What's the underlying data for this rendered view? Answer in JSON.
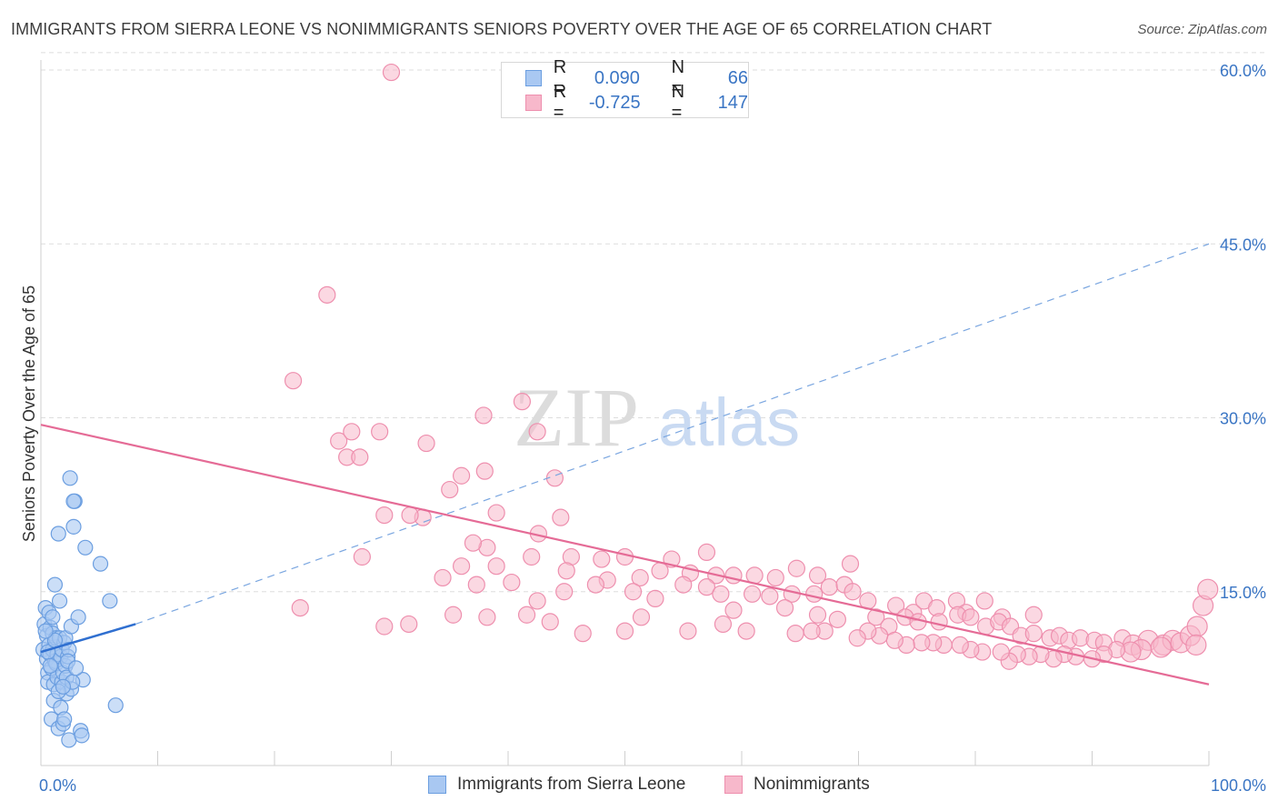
{
  "title": "IMMIGRANTS FROM SIERRA LEONE VS NONIMMIGRANTS SENIORS POVERTY OVER THE AGE OF 65 CORRELATION CHART",
  "source": "Source: ZipAtlas.com",
  "watermark": {
    "part1": "ZIP",
    "part2": "atlas"
  },
  "legend": {
    "r_label": "R =",
    "n_label": "N =",
    "rows": [
      {
        "r": "0.090",
        "n": "66"
      },
      {
        "r": "-0.725",
        "n": "147"
      }
    ]
  },
  "colors": {
    "blue_fill": "#a9c8f2",
    "blue_stroke": "#6b9ee0",
    "blue_line": "#2f6fd0",
    "pink_fill": "#f7b8cb",
    "pink_stroke": "#ee8fae",
    "pink_line": "#e56b96",
    "tick_label": "#3a75c4",
    "grid": "#dddddd"
  },
  "chart_data": {
    "type": "scatter",
    "ylabel": "Seniors Poverty Over the Age of 65",
    "x_tick_labels": {
      "min": "0.0%",
      "max": "100.0%"
    },
    "y_tick_labels": [
      "15.0%",
      "30.0%",
      "45.0%",
      "60.0%"
    ],
    "y_ticks": [
      15,
      30,
      45,
      60
    ],
    "xlim": [
      0,
      100
    ],
    "ylim": [
      0,
      60
    ],
    "grid": true,
    "series": [
      {
        "name": "Immigrants from Sierra Leone",
        "r": 0.09,
        "n": 66,
        "trend_solid": [
          [
            0.0,
            9.8
          ],
          [
            8.1,
            12.2
          ]
        ],
        "trend_dashed": [
          [
            8.1,
            12.2
          ],
          [
            100.0,
            45.0
          ]
        ],
        "points": [
          [
            0.2,
            10.0
          ],
          [
            0.3,
            12.2
          ],
          [
            0.4,
            13.6
          ],
          [
            0.5,
            11.2
          ],
          [
            0.5,
            9.2
          ],
          [
            0.6,
            8.0
          ],
          [
            0.6,
            7.2
          ],
          [
            0.7,
            13.2
          ],
          [
            0.7,
            10.4
          ],
          [
            0.8,
            11.9
          ],
          [
            0.8,
            9.6
          ],
          [
            0.9,
            8.4
          ],
          [
            0.9,
            4.0
          ],
          [
            1.0,
            11.4
          ],
          [
            1.0,
            10.0
          ],
          [
            1.1,
            7.0
          ],
          [
            1.1,
            5.6
          ],
          [
            1.2,
            9.0
          ],
          [
            1.2,
            15.6
          ],
          [
            1.3,
            11.0
          ],
          [
            1.3,
            8.8
          ],
          [
            1.4,
            7.6
          ],
          [
            1.4,
            9.6
          ],
          [
            1.5,
            20.0
          ],
          [
            1.5,
            3.2
          ],
          [
            1.6,
            11.0
          ],
          [
            1.6,
            14.2
          ],
          [
            1.7,
            9.4
          ],
          [
            1.7,
            5.0
          ],
          [
            1.8,
            7.2
          ],
          [
            1.8,
            10.0
          ],
          [
            1.9,
            8.0
          ],
          [
            1.9,
            3.6
          ],
          [
            2.0,
            10.6
          ],
          [
            2.0,
            4.0
          ],
          [
            2.1,
            11.0
          ],
          [
            2.1,
            8.6
          ],
          [
            2.2,
            7.6
          ],
          [
            2.2,
            6.2
          ],
          [
            2.3,
            9.4
          ],
          [
            2.4,
            2.2
          ],
          [
            2.4,
            10.0
          ],
          [
            2.5,
            24.8
          ],
          [
            2.6,
            12.0
          ],
          [
            2.6,
            6.6
          ],
          [
            2.8,
            20.6
          ],
          [
            2.9,
            22.8
          ],
          [
            2.8,
            22.8
          ],
          [
            3.2,
            12.8
          ],
          [
            3.4,
            3.0
          ],
          [
            3.5,
            2.6
          ],
          [
            3.6,
            7.4
          ],
          [
            3.8,
            18.8
          ],
          [
            5.1,
            17.4
          ],
          [
            5.9,
            14.2
          ],
          [
            6.4,
            5.2
          ],
          [
            1.0,
            12.8
          ],
          [
            0.6,
            9.8
          ],
          [
            1.5,
            6.4
          ],
          [
            2.7,
            7.2
          ],
          [
            1.9,
            6.8
          ],
          [
            0.8,
            8.6
          ],
          [
            1.2,
            10.8
          ],
          [
            2.3,
            9.0
          ],
          [
            0.4,
            11.6
          ],
          [
            3.0,
            8.4
          ]
        ]
      },
      {
        "name": "Nonimmigrants",
        "r": -0.725,
        "n": 147,
        "trend": [
          [
            0.0,
            29.4
          ],
          [
            100.0,
            7.0
          ]
        ],
        "points": [
          [
            30,
            59.8
          ],
          [
            24.5,
            40.6
          ],
          [
            21.6,
            33.2
          ],
          [
            41.2,
            31.4
          ],
          [
            25.5,
            28.0
          ],
          [
            26.6,
            28.8
          ],
          [
            29,
            28.8
          ],
          [
            26.2,
            26.6
          ],
          [
            27.3,
            26.6
          ],
          [
            37.9,
            30.2
          ],
          [
            42.5,
            28.8
          ],
          [
            32.7,
            21.4
          ],
          [
            33,
            27.8
          ],
          [
            36,
            25.0
          ],
          [
            38,
            25.4
          ],
          [
            44,
            24.8
          ],
          [
            35,
            23.8
          ],
          [
            29.4,
            21.6
          ],
          [
            31.6,
            21.6
          ],
          [
            39,
            21.8
          ],
          [
            44.5,
            21.4
          ],
          [
            42.6,
            20.0
          ],
          [
            38.2,
            18.8
          ],
          [
            37,
            19.2
          ],
          [
            27.5,
            18.0
          ],
          [
            42,
            18.0
          ],
          [
            45.4,
            18.0
          ],
          [
            48,
            17.8
          ],
          [
            50,
            18.0
          ],
          [
            54,
            17.8
          ],
          [
            57,
            18.4
          ],
          [
            36,
            17.2
          ],
          [
            39,
            17.2
          ],
          [
            45,
            16.8
          ],
          [
            51.3,
            16.2
          ],
          [
            48.5,
            16.0
          ],
          [
            53,
            16.8
          ],
          [
            55.6,
            16.6
          ],
          [
            57.8,
            16.4
          ],
          [
            59.3,
            16.4
          ],
          [
            61.1,
            16.4
          ],
          [
            62.9,
            16.2
          ],
          [
            64.7,
            17.0
          ],
          [
            66.5,
            16.4
          ],
          [
            69.3,
            17.4
          ],
          [
            34.4,
            16.2
          ],
          [
            37.3,
            15.6
          ],
          [
            40.3,
            15.8
          ],
          [
            42.5,
            14.2
          ],
          [
            44.8,
            15.0
          ],
          [
            47.5,
            15.6
          ],
          [
            50.7,
            15.0
          ],
          [
            52.6,
            14.4
          ],
          [
            55.0,
            15.6
          ],
          [
            57.0,
            15.4
          ],
          [
            58.2,
            14.8
          ],
          [
            60.9,
            14.8
          ],
          [
            62.4,
            14.6
          ],
          [
            64.3,
            14.8
          ],
          [
            66.2,
            14.8
          ],
          [
            67.5,
            15.4
          ],
          [
            68.8,
            15.6
          ],
          [
            69.5,
            15.0
          ],
          [
            70.8,
            14.2
          ],
          [
            73.2,
            13.8
          ],
          [
            74.7,
            13.2
          ],
          [
            75.6,
            14.2
          ],
          [
            76.7,
            13.6
          ],
          [
            78.4,
            14.2
          ],
          [
            79.2,
            13.2
          ],
          [
            80.8,
            14.2
          ],
          [
            82.3,
            12.8
          ],
          [
            85,
            13.0
          ],
          [
            22.2,
            13.6
          ],
          [
            35.3,
            13.0
          ],
          [
            41.6,
            13.0
          ],
          [
            43.6,
            12.4
          ],
          [
            51.4,
            12.8
          ],
          [
            59.3,
            13.4
          ],
          [
            63.7,
            13.6
          ],
          [
            66.5,
            13.0
          ],
          [
            68.2,
            12.6
          ],
          [
            71.5,
            12.8
          ],
          [
            72.6,
            12.0
          ],
          [
            74,
            12.8
          ],
          [
            75.1,
            12.4
          ],
          [
            76.9,
            12.4
          ],
          [
            78.5,
            13.0
          ],
          [
            79.6,
            12.8
          ],
          [
            80.9,
            12.0
          ],
          [
            82,
            12.4
          ],
          [
            83,
            12.0
          ],
          [
            83.9,
            11.2
          ],
          [
            85.0,
            11.4
          ],
          [
            86.4,
            11.0
          ],
          [
            87.2,
            11.2
          ],
          [
            88.0,
            10.8
          ],
          [
            89.0,
            11.0
          ],
          [
            90.2,
            10.8
          ],
          [
            91.0,
            10.6
          ],
          [
            92.6,
            11.0
          ],
          [
            93.5,
            10.4
          ],
          [
            94.8,
            10.8
          ],
          [
            96.1,
            10.4
          ],
          [
            96.9,
            10.8
          ],
          [
            97.6,
            10.6
          ],
          [
            98.4,
            11.2
          ],
          [
            99.5,
            13.8
          ],
          [
            99.9,
            15.2
          ],
          [
            99.0,
            12.0
          ],
          [
            98.9,
            10.4
          ],
          [
            95.9,
            10.2
          ],
          [
            94.2,
            10.0
          ],
          [
            93.3,
            9.8
          ],
          [
            92.1,
            10.0
          ],
          [
            91.0,
            9.6
          ],
          [
            90.0,
            9.2
          ],
          [
            88.6,
            9.4
          ],
          [
            87.6,
            9.6
          ],
          [
            86.7,
            9.2
          ],
          [
            85.6,
            9.6
          ],
          [
            84.6,
            9.4
          ],
          [
            83.6,
            9.6
          ],
          [
            82.9,
            9.0
          ],
          [
            82.2,
            9.8
          ],
          [
            80.6,
            9.8
          ],
          [
            79.6,
            10.0
          ],
          [
            78.7,
            10.4
          ],
          [
            77.3,
            10.4
          ],
          [
            76.4,
            10.6
          ],
          [
            75.4,
            10.6
          ],
          [
            74.1,
            10.4
          ],
          [
            73.1,
            10.8
          ],
          [
            71.8,
            11.2
          ],
          [
            70.8,
            11.6
          ],
          [
            69.9,
            11.0
          ],
          [
            67.1,
            11.6
          ],
          [
            66.0,
            11.6
          ],
          [
            64.6,
            11.4
          ],
          [
            60.4,
            11.6
          ],
          [
            58.4,
            12.2
          ],
          [
            55.4,
            11.6
          ],
          [
            50.0,
            11.6
          ],
          [
            46.4,
            11.4
          ],
          [
            38.2,
            12.8
          ],
          [
            31.5,
            12.2
          ],
          [
            29.4,
            12.0
          ]
        ]
      }
    ]
  },
  "bottom_legend": [
    "Immigrants from Sierra Leone",
    "Nonimmigrants"
  ]
}
